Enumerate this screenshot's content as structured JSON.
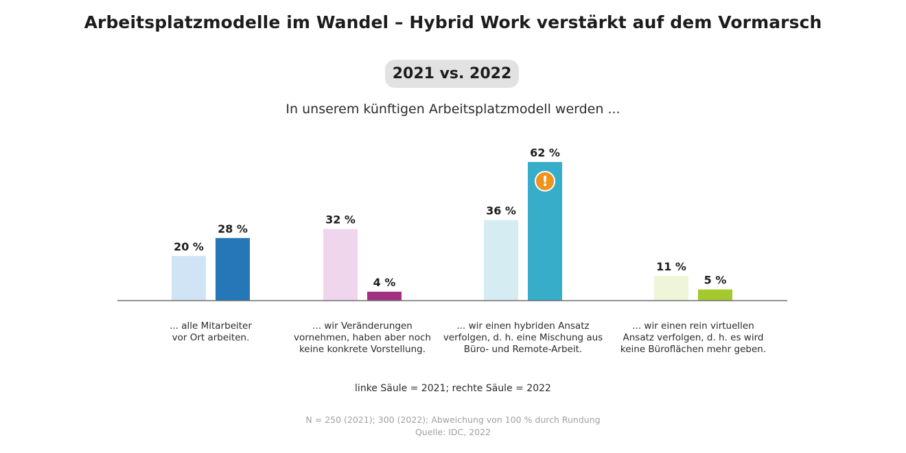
{
  "title": "Arbeitsplatzmodelle im Wandel – Hybrid Work verstärkt auf dem Vormarsch",
  "comparison_badge": "2021 vs. 2022",
  "subtitle": "In unserem künftigen Arbeitsplatzmodell werden ...",
  "legend_note": "linke Säule = 2021; rechte Säule = 2022",
  "footnote": {
    "sample": "N = 250 (2021); 300 (2022); Abweichung von 100 % durch Rundung",
    "source": "Quelle: IDC, 2022"
  },
  "highlight_icon": "exclamation-icon",
  "chart_data": {
    "type": "bar",
    "unit": "%",
    "categories": [
      [
        "... alle Mitarbeiter",
        "vor Ort arbeiten."
      ],
      [
        "... wir Veränderungen",
        "vornehmen, haben aber noch",
        "keine konkrete Vorstellung."
      ],
      [
        "... wir einen hybriden Ansatz",
        "verfolgen, d. h. eine Mischung aus",
        "Büro- und Remote-Arbeit."
      ],
      [
        "... wir einen rein virtuellen",
        "Ansatz verfolgen, d. h. es wird",
        "keine Büroflächen mehr geben."
      ]
    ],
    "series": [
      {
        "values": [
          20,
          32,
          36,
          11
        ]
      },
      {
        "values": [
          28,
          4,
          62,
          5
        ]
      }
    ],
    "labels": [
      [
        "20 %",
        "32 %",
        "36 %",
        "11 %"
      ],
      [
        "28 %",
        "4 %",
        "62 %",
        "5 %"
      ]
    ],
    "colors": [
      [
        "#d1e4f6",
        "#efd6ec",
        "#d5ecf2",
        "#eef5d9"
      ],
      [
        "#2577b8",
        "#a2317f",
        "#37adc9",
        "#a3c92c"
      ]
    ],
    "highlight": {
      "series": 1,
      "category": 2,
      "color": "#f0921e"
    },
    "ylim": [
      0,
      62
    ]
  }
}
